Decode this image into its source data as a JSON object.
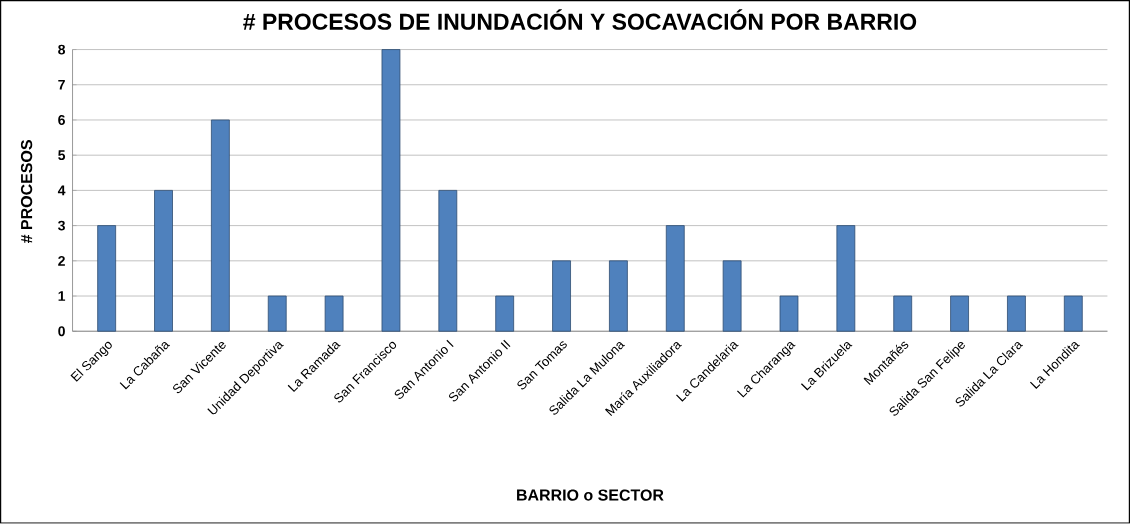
{
  "chart_data": {
    "type": "bar",
    "title": "# PROCESOS DE INUNDACIÓN Y SOCAVACIÓN POR BARRIO",
    "xlabel": "BARRIO o SECTOR",
    "ylabel": "# PROCESOS",
    "categories": [
      "El Sango",
      "La Cabaña",
      "San Vicente",
      "Unidad Deportiva",
      "La Ramada",
      "San Francisco",
      "San Antonio I",
      "San Antonio II",
      "San Tomas",
      "Salida La Mulona",
      "María Auxiliadora",
      "La Candelaria",
      "La Charanga",
      "La Brizuela",
      "Montañés",
      "Salida San Felipe",
      "Salida La Clara",
      "La Hondita"
    ],
    "values": [
      3,
      4,
      6,
      1,
      1,
      8,
      4,
      1,
      2,
      2,
      3,
      2,
      1,
      3,
      1,
      1,
      1,
      1
    ],
    "color": "#4f81bd",
    "ylim": [
      0,
      8
    ],
    "yticks": [
      0,
      1,
      2,
      3,
      4,
      5,
      6,
      7,
      8
    ],
    "grid": "y"
  }
}
